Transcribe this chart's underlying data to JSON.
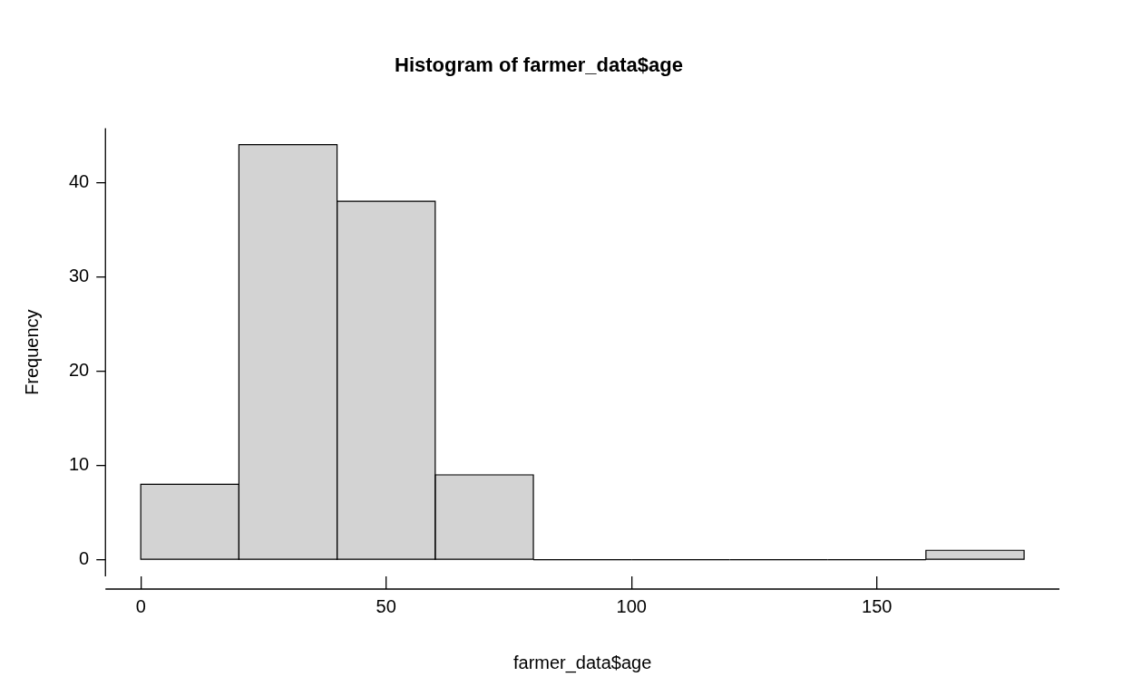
{
  "chart_data": {
    "type": "histogram",
    "title": "Histogram of farmer_data$age",
    "xlabel": "farmer_data$age",
    "ylabel": "Frequency",
    "bins": [
      0,
      20,
      40,
      60,
      80,
      100,
      120,
      140,
      160,
      180
    ],
    "values": [
      8,
      44,
      38,
      9,
      0,
      0,
      0,
      0,
      1
    ],
    "color": "#d3d3d3",
    "xlim": [
      -7.2,
      187.2
    ],
    "ylim": [
      -1.76,
      45.76
    ],
    "xticks": [
      0,
      50,
      100,
      150
    ],
    "yticks": [
      0,
      10,
      20,
      30,
      40
    ],
    "grid": false,
    "legend": false
  }
}
